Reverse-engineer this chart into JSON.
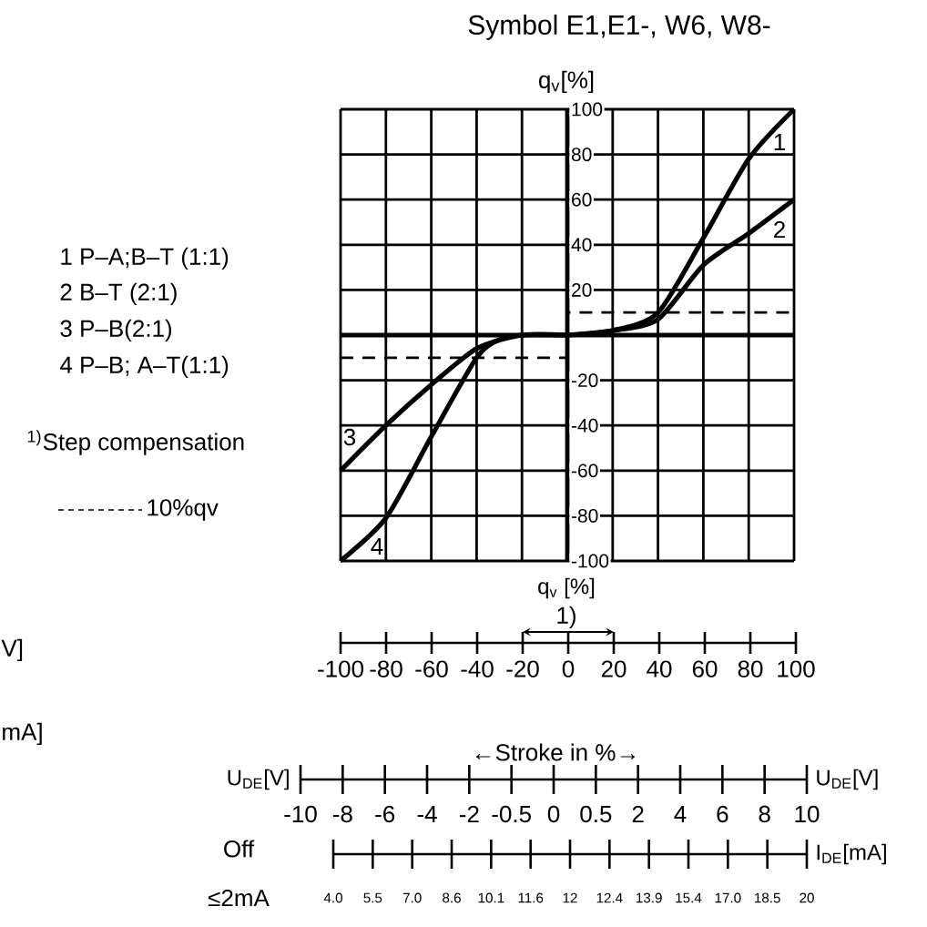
{
  "chart_data": {
    "type": "line",
    "title": "Symbol E1,E1-, W6, W8-",
    "ylabel": "q$_{v}$[%]",
    "xlabel": "←Stroke in  %→",
    "xlim": [
      -100,
      100
    ],
    "ylim": [
      -100,
      100
    ],
    "xticks": [
      -100,
      -80,
      -60,
      -40,
      -20,
      0,
      20,
      40,
      60,
      80,
      100
    ],
    "yticks": [
      -100,
      -80,
      -60,
      -40,
      -20,
      20,
      40,
      60,
      80,
      100
    ],
    "grid": true,
    "legend": "left",
    "series": [
      {
        "name": "1",
        "color": "#000000",
        "x": [
          0,
          20,
          40,
          60,
          80,
          100
        ],
        "values": [
          0,
          2,
          10,
          43,
          78,
          100
        ]
      },
      {
        "name": "2",
        "color": "#000000",
        "x": [
          0,
          20,
          40,
          60,
          80,
          100
        ],
        "values": [
          0,
          2,
          7,
          31,
          45,
          60
        ]
      },
      {
        "name": "3",
        "color": "#000000",
        "x": [
          -100,
          -80,
          -60,
          -40,
          -20,
          0
        ],
        "values": [
          -60,
          -40,
          -22,
          -6,
          0,
          0
        ]
      },
      {
        "name": "4",
        "color": "#000000",
        "x": [
          -100,
          -80,
          -60,
          -40,
          -30,
          -20,
          0
        ],
        "values": [
          -100,
          -81,
          -45,
          -10,
          -2,
          0,
          0
        ]
      },
      {
        "name": "10%qv",
        "color": "#000000",
        "line_style": "dashed",
        "x": [
          -100,
          0,
          0,
          100
        ],
        "values": [
          -10,
          -10,
          10,
          10
        ]
      }
    ],
    "annotations": [
      "1 P–A;B–T (1:1)",
      "2 B–T (2:1)",
      "3 P–B(2:1)",
      "4 P–B; A–T(1:1)",
      "$^{1)}$Step compensation",
      "q$_{v}$ [%]",
      "1)",
      "U$_{DE}$[V]",
      "U$_{DE}$[V]",
      "I$_{DE}$[mA]",
      "Off",
      "≤2mA",
      "V]",
      "mA]",
      "-10",
      "-8",
      "-6",
      "-4",
      "-2",
      "-0.5",
      "0",
      "0.5",
      "2",
      "4",
      "6",
      "8",
      "10",
      "4.0",
      "5.5",
      "7.0",
      "8.6",
      "10.1",
      "11.6",
      "12",
      "12.4",
      "13.9",
      "15.4",
      "17.0",
      "18.5",
      "20"
    ]
  }
}
